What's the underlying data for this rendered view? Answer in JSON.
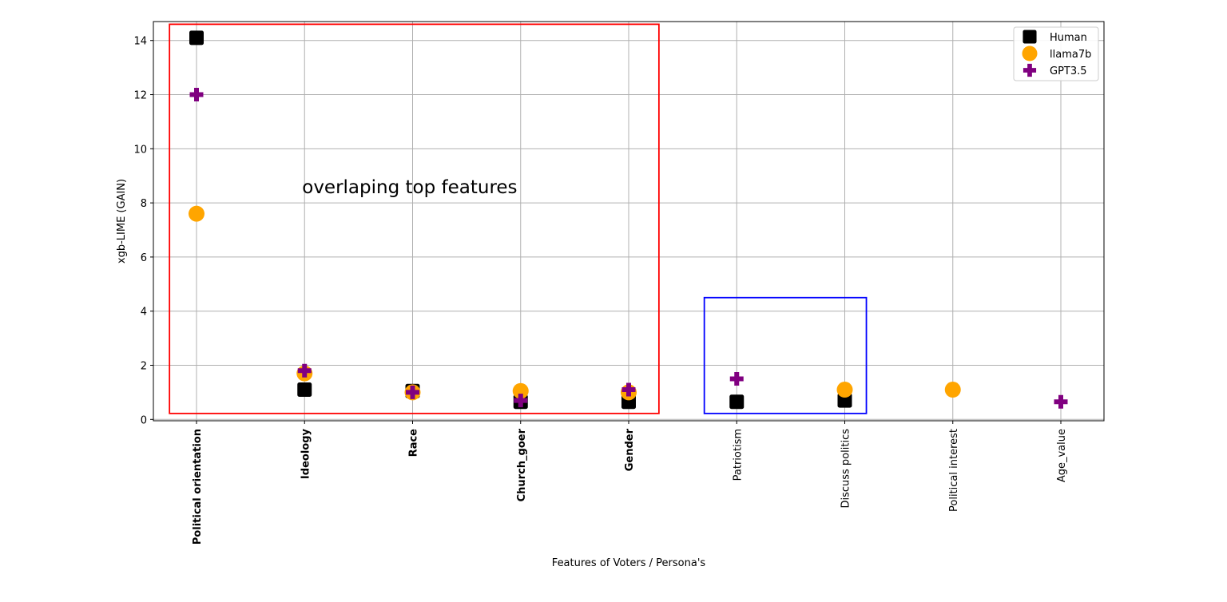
{
  "chart_data": {
    "type": "scatter",
    "title": "",
    "xlabel": "Features of Voters / Persona's",
    "ylabel": "xgb-LIME (GAIN)",
    "ylim": [
      0,
      14.7
    ],
    "yticks": [
      0,
      2,
      4,
      6,
      8,
      10,
      12,
      14
    ],
    "grid": true,
    "legend_position": "top-right",
    "categories": [
      "Political orientation",
      "Ideology",
      "Race",
      "Church_goer",
      "Gender",
      "Patriotism",
      "Discuss politics",
      "Political interest",
      "Age_value"
    ],
    "bold_categories": [
      "Political orientation",
      "Ideology",
      "Race",
      "Church_goer",
      "Gender"
    ],
    "series": [
      {
        "name": "Human",
        "marker": "square",
        "color": "#000000",
        "values": [
          14.1,
          1.1,
          1.05,
          0.65,
          0.65,
          0.65,
          0.7,
          null,
          null
        ]
      },
      {
        "name": "llama7b",
        "marker": "circle",
        "color": "#FFA500",
        "values": [
          7.6,
          1.7,
          1.0,
          1.05,
          1.0,
          null,
          1.1,
          1.1,
          null
        ]
      },
      {
        "name": "GPT3.5",
        "marker": "plus",
        "color": "#800080",
        "values": [
          12.0,
          1.8,
          1.0,
          0.7,
          1.1,
          1.5,
          null,
          null,
          0.65
        ]
      }
    ],
    "annotations": [
      {
        "text": "overlaping top features",
        "x_category": 1,
        "y": 8.6
      }
    ],
    "highlight_boxes": [
      {
        "color": "#ff0000",
        "x_from": -0.25,
        "x_to": 4.28,
        "y_from": 0.22,
        "y_to": 14.6
      },
      {
        "color": "#0000ff",
        "x_from": 4.7,
        "x_to": 6.2,
        "y_from": 0.22,
        "y_to": 4.5
      }
    ]
  }
}
